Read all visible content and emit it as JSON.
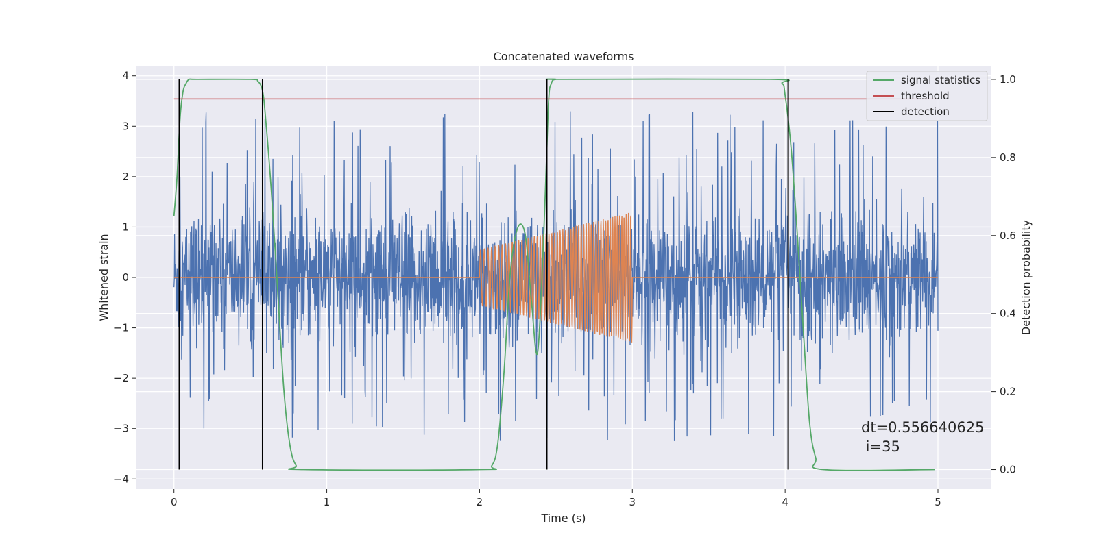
{
  "chart_data": {
    "type": "line",
    "title": "Concatenated waveforms",
    "xlabel": "Time (s)",
    "ylabel_left": "Whitened strain",
    "ylabel_right": "Detection probability",
    "xlim": [
      -0.25,
      5.35
    ],
    "ylim_left": [
      -4.2,
      4.2
    ],
    "ylim_right": [
      -0.05,
      1.035
    ],
    "xticks": [
      0,
      1,
      2,
      3,
      4,
      5
    ],
    "xtick_labels": [
      "0",
      "1",
      "2",
      "3",
      "4",
      "5"
    ],
    "yticks_left": [
      4,
      3,
      2,
      1,
      0,
      -1,
      -2,
      -3,
      -4
    ],
    "ytick_labels_left": [
      "4",
      "3",
      "2",
      "1",
      "0",
      "−1",
      "−2",
      "−3",
      "−4"
    ],
    "yticks_right": [
      1.0,
      0.8,
      0.6,
      0.4,
      0.2,
      0.0
    ],
    "ytick_labels_right": [
      "1.0",
      "0.8",
      "0.6",
      "0.4",
      "0.2",
      "0.0"
    ],
    "grid": true,
    "background": "#eaeaf2",
    "legend_position": "top-right",
    "series": [
      {
        "key": "strain",
        "axis": "left",
        "color": "#4c72b0",
        "x_range": [
          0,
          5
        ],
        "typical_amplitude": 1.0,
        "peak_max": 3.35,
        "peak_min": -3.65
      },
      {
        "key": "injection",
        "axis": "left",
        "color": "#dd8452",
        "x_range": [
          0,
          5
        ],
        "chirp_start": 2.0,
        "chirp_end": 3.0,
        "amplitude_start": 0.55,
        "amplitude_end": 1.3
      },
      {
        "name": "signal statistics",
        "key": "stat",
        "axis": "right",
        "color": "#55a868",
        "x": [
          0.0,
          0.02,
          0.04,
          0.06,
          0.08,
          0.1,
          0.15,
          0.5,
          0.55,
          0.58,
          0.6,
          0.64,
          0.68,
          0.72,
          0.76,
          0.8,
          0.85,
          2.0,
          2.08,
          2.12,
          2.16,
          2.2,
          2.25,
          2.3,
          2.34,
          2.38,
          2.42,
          2.45,
          2.47,
          2.5,
          2.55,
          3.9,
          3.98,
          4.0,
          4.04,
          4.08,
          4.12,
          4.16,
          4.2,
          4.25,
          4.98
        ],
        "y": [
          0.65,
          0.75,
          0.9,
          0.97,
          0.99,
          1.0,
          1.0,
          1.0,
          0.995,
          0.97,
          0.9,
          0.7,
          0.45,
          0.2,
          0.06,
          0.01,
          0.0,
          0.0,
          0.01,
          0.07,
          0.25,
          0.5,
          0.62,
          0.6,
          0.43,
          0.3,
          0.6,
          0.93,
          0.99,
          1.0,
          1.0,
          1.0,
          0.99,
          0.96,
          0.82,
          0.6,
          0.35,
          0.12,
          0.03,
          0.0,
          0.0
        ]
      },
      {
        "name": "threshold",
        "key": "threshold",
        "axis": "right",
        "color": "#c44e52",
        "x": [
          0,
          5
        ],
        "y": [
          0.95,
          0.95
        ]
      }
    ],
    "detection": {
      "name": "detection",
      "color": "#000000",
      "x": [
        0.035,
        0.58,
        2.44,
        4.02
      ],
      "y_range": [
        0.0,
        1.0
      ]
    },
    "annotation": {
      "line1": "dt=0.556640625",
      "line2": " i=35"
    }
  }
}
